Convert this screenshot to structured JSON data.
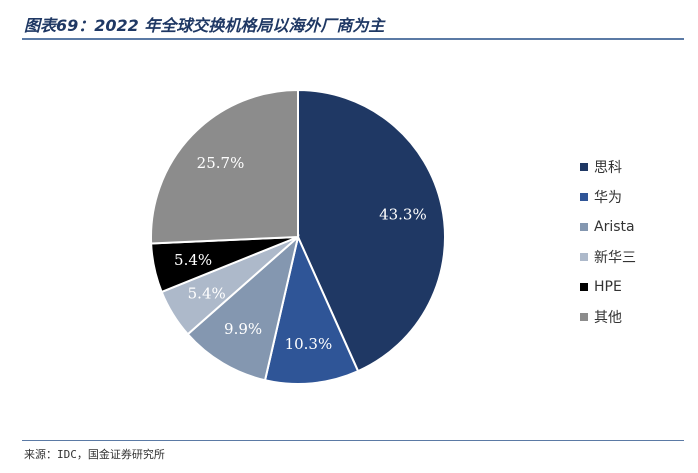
{
  "header": {
    "title": "图表69：2022 年全球交换机格局以海外厂商为主"
  },
  "footer": {
    "source": "来源：IDC，国金证券研究所"
  },
  "chart_data": {
    "type": "pie",
    "title": "",
    "legend_position": "right",
    "slices": [
      {
        "label": "思科",
        "value": 43.3,
        "value_label": "43.3%",
        "color": "#1f3864",
        "label_color": "#ffffff"
      },
      {
        "label": "华为",
        "value": 10.3,
        "value_label": "10.3%",
        "color": "#2f5597",
        "label_color": "#ffffff"
      },
      {
        "label": "Arista",
        "value": 9.9,
        "value_label": "9.9%",
        "color": "#8497b0",
        "label_color": "#ffffff"
      },
      {
        "label": "新华三",
        "value": 5.4,
        "value_label": "5.4%",
        "color": "#adb9ca",
        "label_color": "#ffffff"
      },
      {
        "label": "HPE",
        "value": 5.4,
        "value_label": "5.4%",
        "color": "#000000",
        "label_color": "#ffffff"
      },
      {
        "label": "其他",
        "value": 25.7,
        "value_label": "25.7%",
        "color": "#8c8c8c",
        "label_color": "#ffffff"
      }
    ]
  }
}
